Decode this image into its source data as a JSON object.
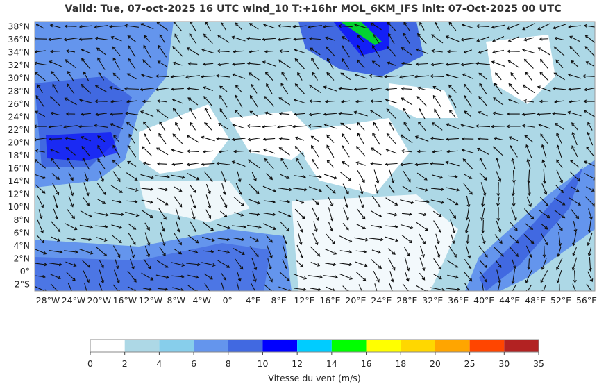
{
  "title": "Valid: Tue, 07-oct-2025   16 UTC   wind_10   T:+16hr   MOL_6KM_IFS   init: 07-Oct-2025    00 UTC",
  "lat_labels": [
    "38°N",
    "36°N",
    "34°N",
    "32°N",
    "30°N",
    "28°N",
    "26°N",
    "24°N",
    "22°N",
    "20°N",
    "18°N",
    "16°N",
    "14°N",
    "12°N",
    "10°N",
    "8°N",
    "6°N",
    "4°N",
    "2°N",
    "0°",
    "2°S"
  ],
  "lon_labels": [
    "28°W",
    "24°W",
    "20°W",
    "16°W",
    "12°W",
    "8°W",
    "4°W",
    "0°",
    "4°E",
    "8°E",
    "12°E",
    "16°E",
    "20°E",
    "24°E",
    "28°E",
    "32°E",
    "36°E",
    "40°E",
    "44°E",
    "48°E",
    "52°E",
    "56°E"
  ],
  "colorbar": {
    "colors": [
      "#ffffff",
      "#add8e6",
      "#87ceeb",
      "#6495ed",
      "#4169e1",
      "#0000ff",
      "#00ccff",
      "#00ff00",
      "#ffff00",
      "#ffd700",
      "#ffa500",
      "#ff4500",
      "#b22222"
    ],
    "ticks": [
      0,
      2,
      4,
      6,
      8,
      10,
      12,
      14,
      16,
      18,
      20,
      25,
      30,
      35
    ],
    "label": "Vitesse du vent (m/s)"
  }
}
